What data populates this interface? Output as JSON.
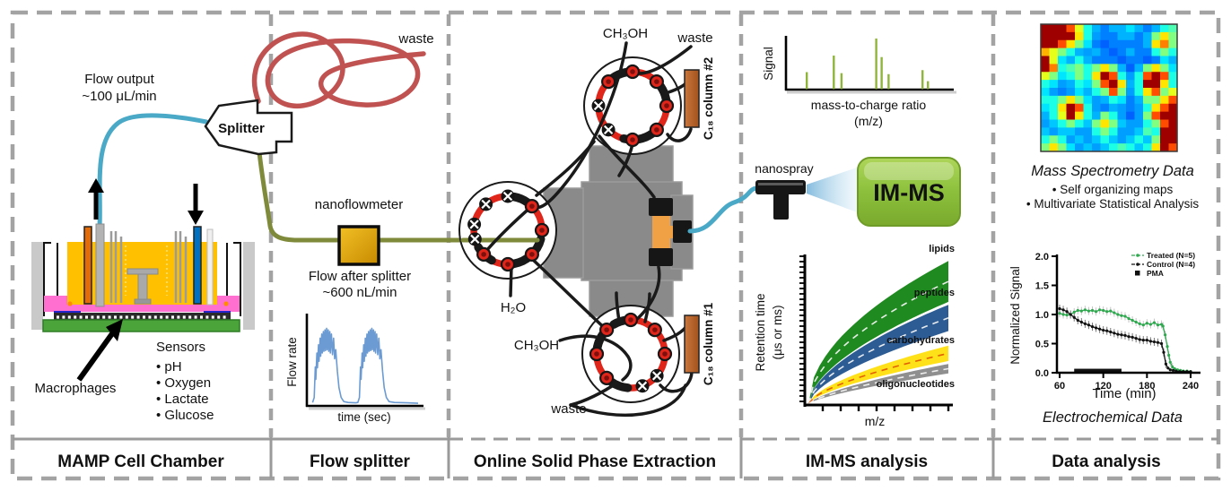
{
  "panels": {
    "mamp": {
      "title": "MAMP Cell Chamber",
      "flow_output_line1": "Flow output",
      "flow_output_line2": "~100 μL/min",
      "macrophages_label": "Macrophages",
      "sensors_title": "Sensors",
      "sensors": [
        "pH",
        "Oxygen",
        "Lactate",
        "Glucose"
      ]
    },
    "splitter": {
      "title": "Flow splitter",
      "device_label": "Splitter",
      "waste_label": "waste",
      "nanoflowmeter_label": "nanoflowmeter",
      "flow_after_line1": "Flow after splitter",
      "flow_after_line2": "~600 nL/min"
    },
    "spe": {
      "title": "Online Solid Phase Extraction",
      "ch3oh_top": "CH₃OH",
      "waste_top": "waste",
      "column2": "C₁₈ column #2",
      "h2o": "H₂O",
      "ch3oh_bottom": "CH₃OH",
      "waste_bottom": "waste",
      "column1": "C₁₈ column #1"
    },
    "imms": {
      "title": "IM-MS analysis",
      "nanospray_label": "nanospray",
      "box_label": "IM-MS"
    },
    "data": {
      "title": "Data analysis",
      "som_title": "Mass Spectrometry Data",
      "som_bullets": [
        "Self organizing maps",
        "Multivariate  Statistical Analysis"
      ],
      "echem_title": "Electrochemical Data"
    }
  },
  "chart_data": {
    "flow_rate": {
      "type": "line",
      "ylabel": "Flow rate",
      "xlabel": "time (sec)",
      "x_range": [
        0,
        1
      ],
      "y_range": [
        0,
        1
      ],
      "color": "#6b9bd2",
      "points": [
        [
          0.02,
          0.02
        ],
        [
          0.035,
          0.08
        ],
        [
          0.045,
          0.45
        ],
        [
          0.05,
          0.3
        ],
        [
          0.06,
          0.62
        ],
        [
          0.065,
          0.44
        ],
        [
          0.075,
          0.72
        ],
        [
          0.08,
          0.52
        ],
        [
          0.09,
          0.8
        ],
        [
          0.095,
          0.58
        ],
        [
          0.105,
          0.85
        ],
        [
          0.11,
          0.62
        ],
        [
          0.12,
          0.88
        ],
        [
          0.125,
          0.64
        ],
        [
          0.135,
          0.9
        ],
        [
          0.14,
          0.65
        ],
        [
          0.15,
          0.92
        ],
        [
          0.155,
          0.66
        ],
        [
          0.165,
          0.9
        ],
        [
          0.17,
          0.64
        ],
        [
          0.18,
          0.88
        ],
        [
          0.185,
          0.62
        ],
        [
          0.195,
          0.85
        ],
        [
          0.205,
          0.6
        ],
        [
          0.215,
          0.8
        ],
        [
          0.225,
          0.55
        ],
        [
          0.235,
          0.66
        ],
        [
          0.25,
          0.4
        ],
        [
          0.265,
          0.2
        ],
        [
          0.285,
          0.08
        ],
        [
          0.31,
          0.03
        ],
        [
          0.35,
          0.02
        ],
        [
          0.42,
          0.015
        ],
        [
          0.44,
          0.02
        ],
        [
          0.455,
          0.08
        ],
        [
          0.465,
          0.45
        ],
        [
          0.47,
          0.3
        ],
        [
          0.48,
          0.62
        ],
        [
          0.485,
          0.44
        ],
        [
          0.495,
          0.72
        ],
        [
          0.5,
          0.52
        ],
        [
          0.51,
          0.8
        ],
        [
          0.515,
          0.58
        ],
        [
          0.525,
          0.85
        ],
        [
          0.53,
          0.62
        ],
        [
          0.54,
          0.88
        ],
        [
          0.545,
          0.64
        ],
        [
          0.555,
          0.9
        ],
        [
          0.56,
          0.65
        ],
        [
          0.57,
          0.92
        ],
        [
          0.575,
          0.66
        ],
        [
          0.585,
          0.9
        ],
        [
          0.59,
          0.64
        ],
        [
          0.6,
          0.88
        ],
        [
          0.605,
          0.62
        ],
        [
          0.615,
          0.85
        ],
        [
          0.625,
          0.6
        ],
        [
          0.635,
          0.8
        ],
        [
          0.645,
          0.55
        ],
        [
          0.655,
          0.66
        ],
        [
          0.67,
          0.4
        ],
        [
          0.685,
          0.2
        ],
        [
          0.705,
          0.08
        ],
        [
          0.73,
          0.03
        ],
        [
          0.78,
          0.02
        ],
        [
          0.9,
          0.015
        ],
        [
          1.0,
          0.01
        ]
      ]
    },
    "mass_spectrum": {
      "type": "bar",
      "ylabel": "Signal",
      "xlabel_line1": "mass-to-charge ratio",
      "xlabel_line2": "(m/z)",
      "color": "#8fb53a",
      "peaks": [
        [
          0.1,
          0.33
        ],
        [
          0.275,
          0.66
        ],
        [
          0.325,
          0.31
        ],
        [
          0.55,
          1.0
        ],
        [
          0.585,
          0.63
        ],
        [
          0.63,
          0.29
        ],
        [
          0.85,
          0.37
        ],
        [
          0.885,
          0.15
        ]
      ]
    },
    "ion_mobility": {
      "type": "area",
      "ylabel_line1": "Retention time",
      "ylabel_line2": "(μs or ms)",
      "xlabel": "m/z",
      "series": [
        {
          "name": "lipids",
          "color": "#1f8a1f",
          "label_color": "#1f8a1f",
          "center_color": "#f2f2f2",
          "top": 0.98,
          "bottom": 0.7,
          "exp": 0.52,
          "exp_b": 0.58
        },
        {
          "name": "peptides",
          "color": "#2d5c94",
          "label_color": "#3a6ba3",
          "center_color": "#f2f2f2",
          "top": 0.68,
          "bottom": 0.5,
          "exp": 0.58,
          "exp_b": 0.62
        },
        {
          "name": "carbohydrates",
          "color": "#ffe11a",
          "label_color": "#c05a10",
          "center_color": "#e05800",
          "top": 0.4,
          "bottom": 0.295,
          "exp": 0.62,
          "exp_b": 0.66
        },
        {
          "name": "oligonucleotides",
          "color": "#8f8f8f",
          "label_color": "#989898",
          "center_color": "#f2f2f2",
          "top": 0.275,
          "bottom": 0.21,
          "exp": 0.68,
          "exp_b": 0.72
        }
      ]
    },
    "som_heatmap": {
      "type": "heatmap",
      "colormap": "jet",
      "grid": [
        [
          0.97,
          0.97,
          0.97,
          0.8,
          0.6,
          0.4,
          0.3,
          0.25,
          0.3,
          0.3,
          0.35,
          0.3,
          0.25,
          0.3,
          0.4,
          0.45
        ],
        [
          0.97,
          0.97,
          0.97,
          0.97,
          0.65,
          0.4,
          0.28,
          0.25,
          0.25,
          0.3,
          0.3,
          0.25,
          0.3,
          0.5,
          0.65,
          0.5
        ],
        [
          0.97,
          0.97,
          0.8,
          0.65,
          0.5,
          0.35,
          0.25,
          0.22,
          0.25,
          0.25,
          0.25,
          0.25,
          0.3,
          0.65,
          0.75,
          0.5
        ],
        [
          0.7,
          0.6,
          0.5,
          0.4,
          0.3,
          0.28,
          0.3,
          0.25,
          0.22,
          0.25,
          0.3,
          0.25,
          0.25,
          0.4,
          0.5,
          0.4
        ],
        [
          0.97,
          0.6,
          0.35,
          0.3,
          0.4,
          0.3,
          0.25,
          0.25,
          0.25,
          0.22,
          0.25,
          0.25,
          0.22,
          0.25,
          0.35,
          0.3
        ],
        [
          0.97,
          0.75,
          0.4,
          0.45,
          0.5,
          0.4,
          0.5,
          0.65,
          0.5,
          0.3,
          0.22,
          0.3,
          0.5,
          0.65,
          0.5,
          0.35
        ],
        [
          0.6,
          0.5,
          0.35,
          0.4,
          0.5,
          0.4,
          0.65,
          0.97,
          0.8,
          0.4,
          0.28,
          0.4,
          0.8,
          0.97,
          0.8,
          0.4
        ],
        [
          0.4,
          0.35,
          0.28,
          0.3,
          0.4,
          0.35,
          0.5,
          0.8,
          0.97,
          0.65,
          0.3,
          0.4,
          0.97,
          0.97,
          0.65,
          0.4
        ],
        [
          0.35,
          0.28,
          0.25,
          0.28,
          0.35,
          0.3,
          0.4,
          0.5,
          0.8,
          0.5,
          0.28,
          0.4,
          0.65,
          0.8,
          0.5,
          0.6
        ],
        [
          0.4,
          0.4,
          0.5,
          0.65,
          0.5,
          0.35,
          0.28,
          0.3,
          0.4,
          0.35,
          0.25,
          0.3,
          0.5,
          0.5,
          0.65,
          0.8
        ],
        [
          0.35,
          0.4,
          0.65,
          0.97,
          0.8,
          0.4,
          0.28,
          0.25,
          0.3,
          0.28,
          0.25,
          0.28,
          0.4,
          0.65,
          0.8,
          0.97
        ],
        [
          0.3,
          0.4,
          0.6,
          0.97,
          0.65,
          0.4,
          0.3,
          0.5,
          0.4,
          0.28,
          0.22,
          0.28,
          0.5,
          0.8,
          0.97,
          0.97
        ],
        [
          0.28,
          0.32,
          0.4,
          0.5,
          0.4,
          0.32,
          0.5,
          0.65,
          0.5,
          0.32,
          0.28,
          0.28,
          0.4,
          0.5,
          0.8,
          0.97
        ],
        [
          0.32,
          0.28,
          0.32,
          0.32,
          0.28,
          0.28,
          0.4,
          0.5,
          0.4,
          0.28,
          0.28,
          0.32,
          0.45,
          0.4,
          0.97,
          0.97
        ],
        [
          0.4,
          0.5,
          0.4,
          0.28,
          0.32,
          0.28,
          0.32,
          0.4,
          0.32,
          0.28,
          0.32,
          0.4,
          0.32,
          0.5,
          0.97,
          0.97
        ],
        [
          0.5,
          0.65,
          0.5,
          0.35,
          0.28,
          0.32,
          0.28,
          0.32,
          0.4,
          0.45,
          0.4,
          0.32,
          0.4,
          0.65,
          0.97,
          0.8
        ]
      ]
    },
    "electrochemical": {
      "type": "line",
      "title": "Electrochemical Data",
      "xlabel": "Time (min)",
      "ylabel": "Normalized Signal",
      "x_ticks": [
        60,
        120,
        180,
        240
      ],
      "y_ticks": [
        0.0,
        0.5,
        1.0,
        1.5,
        2.0
      ],
      "x_range": [
        60,
        240
      ],
      "y_range": [
        0,
        2
      ],
      "series": [
        {
          "name": "Treated (N=5)",
          "color": "#2fa84f",
          "err_color": "#c4c4c4",
          "marker": "line-dot",
          "points": [
            [
              60,
              1.02
            ],
            [
              65,
              1.0
            ],
            [
              70,
              0.99
            ],
            [
              75,
              1.0
            ],
            [
              80,
              1.04
            ],
            [
              85,
              1.07
            ],
            [
              90,
              1.06
            ],
            [
              95,
              1.08
            ],
            [
              100,
              1.06
            ],
            [
              105,
              1.07
            ],
            [
              110,
              1.05
            ],
            [
              115,
              1.08
            ],
            [
              120,
              1.07
            ],
            [
              125,
              1.05
            ],
            [
              130,
              1.06
            ],
            [
              135,
              1.03
            ],
            [
              140,
              1.0
            ],
            [
              145,
              0.98
            ],
            [
              150,
              0.97
            ],
            [
              155,
              0.93
            ],
            [
              160,
              0.9
            ],
            [
              165,
              0.87
            ],
            [
              170,
              0.84
            ],
            [
              175,
              0.82
            ],
            [
              180,
              0.85
            ],
            [
              185,
              0.83
            ],
            [
              190,
              0.86
            ],
            [
              195,
              0.82
            ],
            [
              200,
              0.83
            ],
            [
              202,
              0.8
            ],
            [
              205,
              0.65
            ],
            [
              208,
              0.45
            ],
            [
              210,
              0.3
            ],
            [
              212,
              0.18
            ],
            [
              215,
              0.1
            ],
            [
              218,
              0.07
            ],
            [
              222,
              0.05
            ],
            [
              226,
              0.04
            ],
            [
              230,
              0.03
            ],
            [
              235,
              0.03
            ],
            [
              240,
              0.02
            ]
          ]
        },
        {
          "name": "Control (N=4)",
          "color": "#111111",
          "err_color": "#777777",
          "marker": "line-dot",
          "points": [
            [
              60,
              1.1
            ],
            [
              65,
              1.08
            ],
            [
              70,
              1.05
            ],
            [
              75,
              1.0
            ],
            [
              80,
              0.95
            ],
            [
              85,
              0.9
            ],
            [
              90,
              0.87
            ],
            [
              95,
              0.84
            ],
            [
              100,
              0.82
            ],
            [
              105,
              0.79
            ],
            [
              110,
              0.77
            ],
            [
              115,
              0.75
            ],
            [
              120,
              0.73
            ],
            [
              125,
              0.72
            ],
            [
              130,
              0.7
            ],
            [
              135,
              0.68
            ],
            [
              140,
              0.66
            ],
            [
              145,
              0.65
            ],
            [
              150,
              0.64
            ],
            [
              155,
              0.62
            ],
            [
              160,
              0.61
            ],
            [
              165,
              0.59
            ],
            [
              170,
              0.57
            ],
            [
              175,
              0.56
            ],
            [
              180,
              0.56
            ],
            [
              185,
              0.54
            ],
            [
              190,
              0.53
            ],
            [
              195,
              0.52
            ],
            [
              200,
              0.5
            ],
            [
              203,
              0.35
            ],
            [
              206,
              0.15
            ],
            [
              209,
              0.08
            ],
            [
              212,
              0.05
            ],
            [
              216,
              0.04
            ],
            [
              220,
              0.03
            ],
            [
              225,
              0.02
            ],
            [
              230,
              0.02
            ],
            [
              235,
              0.02
            ],
            [
              240,
              0.02
            ]
          ]
        }
      ],
      "pma": {
        "name": "PMA",
        "color": "#111111",
        "marker": "square",
        "x_start": 80,
        "x_end": 145,
        "y": 0.03
      }
    }
  }
}
